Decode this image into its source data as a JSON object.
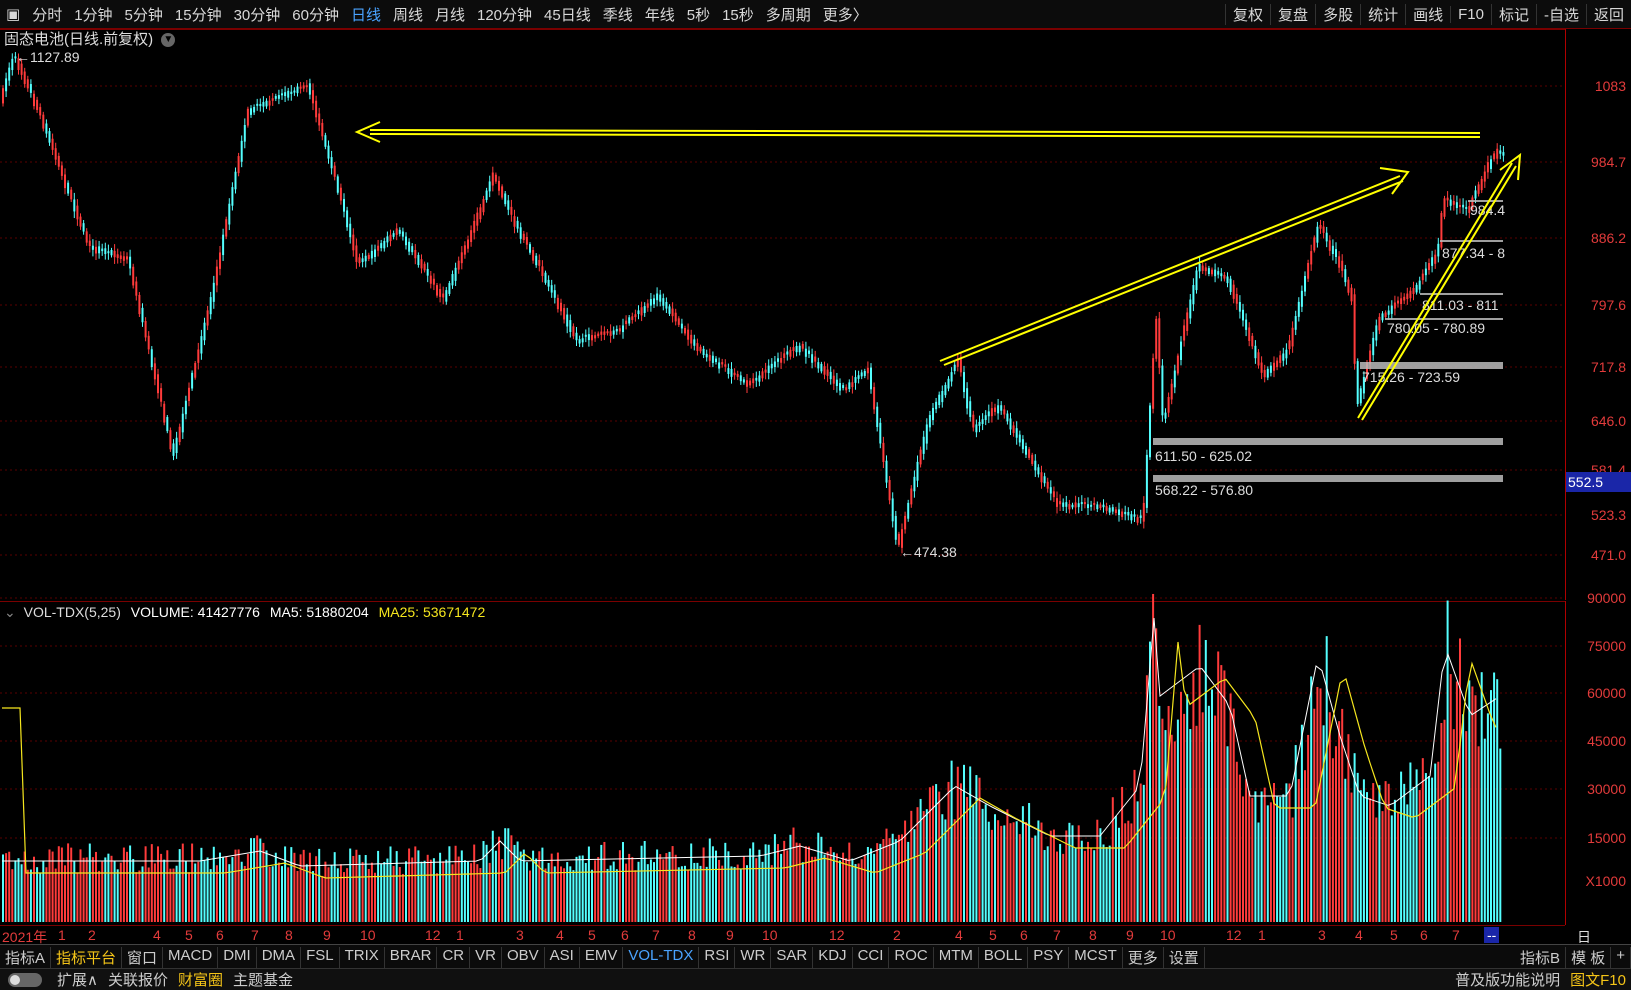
{
  "topbar": {
    "periods": [
      "分时",
      "1分钟",
      "5分钟",
      "15分钟",
      "30分钟",
      "60分钟",
      "日线",
      "周线",
      "月线",
      "120分钟",
      "45日线",
      "季线",
      "年线",
      "5秒",
      "15秒",
      "多周期",
      "更多〉"
    ],
    "active_period": "日线",
    "right_items": [
      "复权",
      "复盘",
      "多股",
      "统计",
      "画线",
      "F10",
      "标记",
      "-自选",
      "返回"
    ]
  },
  "price_panel": {
    "title": "固态电池(日线.前复权)",
    "high_label": "1127.89",
    "low_label": "474.38",
    "axis_ticks": [
      "1083",
      "984.7",
      "886.2",
      "797.6",
      "717.8",
      "646.0",
      "581.4",
      "523.3",
      "471.0"
    ],
    "current_price": "552.5",
    "zones": [
      "611.50 - 625.02",
      "568.22 - 576.80",
      "715.26 - 723.59",
      "780.05 - 780.89",
      "811.03 - 811",
      "877.34 - 8",
      "984.4"
    ]
  },
  "volume_panel": {
    "indicator": "VOL-TDX(5,25)",
    "volume_label": "VOLUME: 41427776",
    "ma5_label": "MA5: 51880204",
    "ma25_label": "MA25: 53671472",
    "axis_ticks": [
      "90000",
      "75000",
      "60000",
      "45000",
      "30000",
      "15000"
    ],
    "unit": "X1000"
  },
  "date_axis": {
    "year": "2021年",
    "months": [
      "1",
      "2",
      "4",
      "5",
      "6",
      "7",
      "8",
      "9",
      "10",
      "12",
      "1",
      "3",
      "4",
      "5",
      "6",
      "7",
      "8",
      "9",
      "10",
      "12",
      "2",
      "4",
      "5",
      "6",
      "7",
      "8",
      "9",
      "10",
      "12",
      "1",
      "3",
      "4",
      "5",
      "6",
      "7",
      "--"
    ],
    "period_label": "日线"
  },
  "indicator_bar": {
    "items": [
      "指标A",
      "指标平台",
      "窗口",
      "MACD",
      "DMI",
      "DMA",
      "FSL",
      "TRIX",
      "BRAR",
      "CR",
      "VR",
      "OBV",
      "ASI",
      "EMV",
      "VOL-TDX",
      "RSI",
      "WR",
      "SAR",
      "KDJ",
      "CCI",
      "ROC",
      "MTM",
      "BOLL",
      "PSY",
      "MCST",
      "更多",
      "设置"
    ],
    "active": "VOL-TDX",
    "right_items": [
      "指标B",
      "模 板",
      "+"
    ]
  },
  "statusbar": {
    "items": [
      "扩展∧",
      "关联报价",
      "财富圈",
      "主题基金"
    ],
    "right_items": [
      "普及版功能说明",
      "图文F10"
    ]
  },
  "colors": {
    "up": "#ff3b3b",
    "down": "#54ffff",
    "ma5": "#ffffff",
    "ma25": "#f5e61e",
    "annotation": "#ffff00",
    "axis": "#e23b3b"
  }
}
